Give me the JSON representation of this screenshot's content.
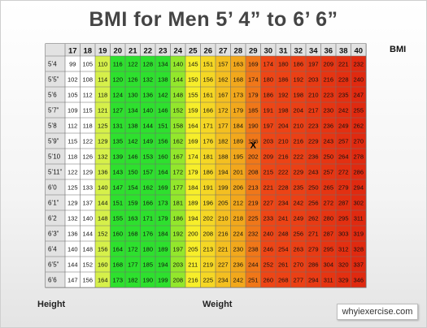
{
  "page": {
    "title": "BMI for Men 5’ 4” to 6’ 6”",
    "bmi_label": "BMI",
    "height_label": "Height",
    "weight_label": "Weight",
    "site": "whyiexercise.com"
  },
  "chart_data": {
    "type": "table",
    "title": "BMI for Men 5’ 4” to 6’ 6”",
    "column_header_label": "BMI",
    "row_axis_label": "Height",
    "value_label": "Weight",
    "columns": [
      "17",
      "18",
      "19",
      "20",
      "21",
      "22",
      "23",
      "24",
      "25",
      "26",
      "27",
      "28",
      "29",
      "30",
      "31",
      "32",
      "34",
      "36",
      "38",
      "40"
    ],
    "rows": [
      {
        "height": "5’4",
        "values": [
          "99",
          "105",
          "110",
          "116",
          "122",
          "128",
          "134",
          "140",
          "145",
          "151",
          "157",
          "163",
          "169",
          "174",
          "180",
          "186",
          "197",
          "209",
          "221",
          "232"
        ]
      },
      {
        "height": "5’5”",
        "values": [
          "102",
          "108",
          "114",
          "120",
          "126",
          "132",
          "138",
          "144",
          "150",
          "156",
          "162",
          "168",
          "174",
          "180",
          "186",
          "192",
          "203",
          "216",
          "228",
          "240"
        ]
      },
      {
        "height": "5’6",
        "values": [
          "105",
          "112",
          "118",
          "124",
          "130",
          "136",
          "142",
          "148",
          "155",
          "161",
          "167",
          "173",
          "179",
          "186",
          "192",
          "198",
          "210",
          "223",
          "235",
          "247"
        ]
      },
      {
        "height": "5’7”",
        "values": [
          "109",
          "115",
          "121",
          "127",
          "134",
          "140",
          "146",
          "152",
          "159",
          "166",
          "172",
          "179",
          "185",
          "191",
          "198",
          "204",
          "217",
          "230",
          "242",
          "255"
        ]
      },
      {
        "height": "5’8",
        "values": [
          "112",
          "118",
          "125",
          "131",
          "138",
          "144",
          "151",
          "158",
          "164",
          "171",
          "177",
          "184",
          "190",
          "197",
          "204",
          "210",
          "223",
          "236",
          "249",
          "262"
        ]
      },
      {
        "height": "5’9”",
        "values": [
          "115",
          "122",
          "129",
          "135",
          "142",
          "149",
          "156",
          "162",
          "169",
          "176",
          "182",
          "189",
          "196",
          "203",
          "210",
          "216",
          "229",
          "243",
          "257",
          "270"
        ]
      },
      {
        "height": "5’10",
        "values": [
          "118",
          "126",
          "132",
          "139",
          "146",
          "153",
          "160",
          "167",
          "174",
          "181",
          "188",
          "195",
          "202",
          "209",
          "216",
          "222",
          "236",
          "250",
          "264",
          "278"
        ]
      },
      {
        "height": "5’11”",
        "values": [
          "122",
          "129",
          "136",
          "143",
          "150",
          "157",
          "164",
          "172",
          "179",
          "186",
          "194",
          "201",
          "208",
          "215",
          "222",
          "229",
          "243",
          "257",
          "272",
          "286"
        ]
      },
      {
        "height": "6’0",
        "values": [
          "125",
          "133",
          "140",
          "147",
          "154",
          "162",
          "169",
          "177",
          "184",
          "191",
          "199",
          "206",
          "213",
          "221",
          "228",
          "235",
          "250",
          "265",
          "279",
          "294"
        ]
      },
      {
        "height": "6’1”",
        "values": [
          "129",
          "137",
          "144",
          "151",
          "159",
          "166",
          "173",
          "181",
          "189",
          "196",
          "205",
          "212",
          "219",
          "227",
          "234",
          "242",
          "256",
          "272",
          "287",
          "302"
        ]
      },
      {
        "height": "6’2",
        "values": [
          "132",
          "140",
          "148",
          "155",
          "163",
          "171",
          "179",
          "186",
          "194",
          "202",
          "210",
          "218",
          "225",
          "233",
          "241",
          "249",
          "262",
          "280",
          "295",
          "311"
        ]
      },
      {
        "height": "6’3”",
        "values": [
          "136",
          "144",
          "152",
          "160",
          "168",
          "176",
          "184",
          "192",
          "200",
          "208",
          "216",
          "224",
          "232",
          "240",
          "248",
          "256",
          "271",
          "287",
          "303",
          "319"
        ]
      },
      {
        "height": "6’4",
        "values": [
          "140",
          "148",
          "156",
          "164",
          "172",
          "180",
          "189",
          "197",
          "205",
          "213",
          "221",
          "230",
          "238",
          "246",
          "254",
          "263",
          "279",
          "295",
          "312",
          "328"
        ]
      },
      {
        "height": "6’5”",
        "values": [
          "144",
          "152",
          "160",
          "168",
          "177",
          "185",
          "194",
          "203",
          "211",
          "219",
          "227",
          "236",
          "244",
          "252",
          "261",
          "270",
          "286",
          "304",
          "320",
          "337"
        ]
      },
      {
        "height": "6’6",
        "values": [
          "147",
          "156",
          "164",
          "173",
          "182",
          "190",
          "199",
          "208",
          "216",
          "225",
          "234",
          "242",
          "251",
          "260",
          "268",
          "277",
          "294",
          "311",
          "329",
          "346"
        ]
      }
    ],
    "marker": {
      "symbol": "X",
      "row": 5,
      "column": 12
    },
    "colors": {
      "underweight": "#ffffff",
      "normal_light": "#d6f04a",
      "normal": "#2ee02e",
      "overweight": "#f7ee2a",
      "overweight_dark": "#f2a81c",
      "obese": "#ee4616",
      "obese_dark": "#e02a10"
    }
  }
}
